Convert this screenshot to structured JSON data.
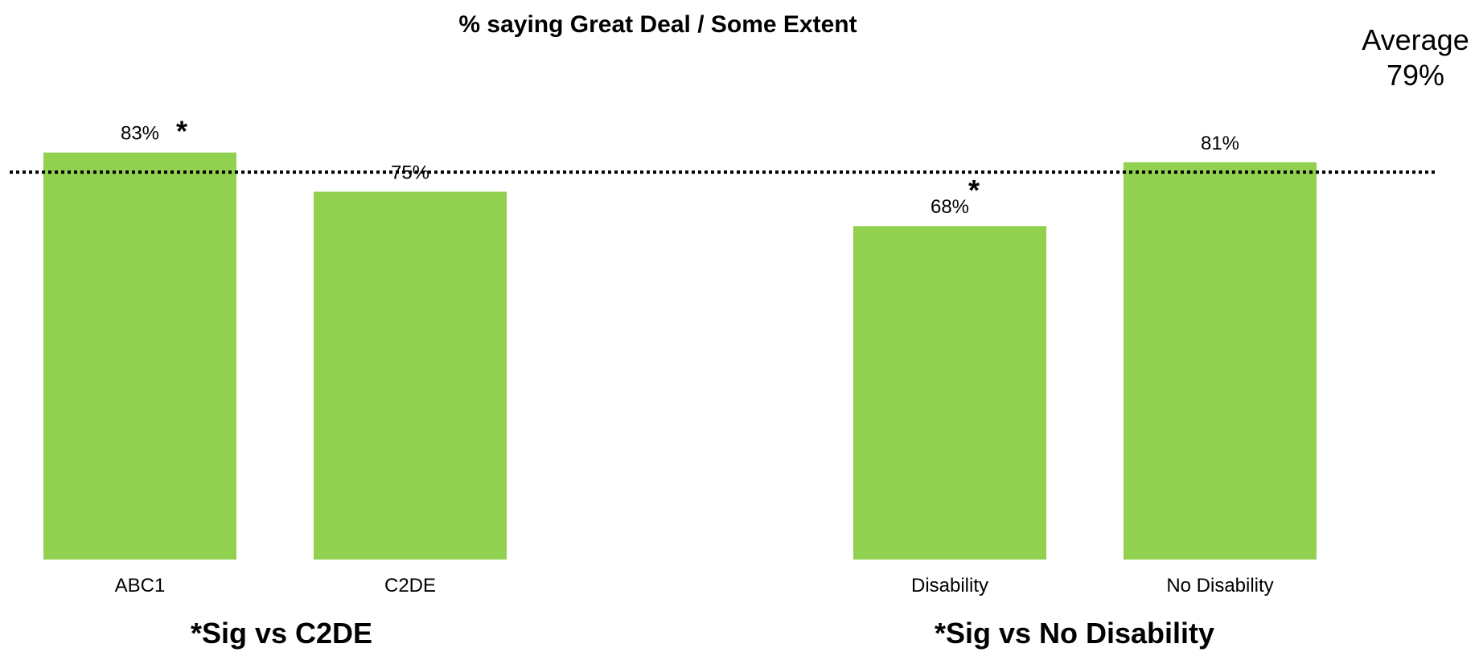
{
  "chart_data": {
    "type": "bar",
    "title": "% saying Great Deal / Some Extent",
    "xlabel": "",
    "ylabel": "",
    "ylim": [
      0,
      100
    ],
    "grid": false,
    "legend": "none",
    "bar_color": "#92d050",
    "categories": [
      "ABC1",
      "C2DE",
      "Disability",
      "No Disability"
    ],
    "values": [
      83,
      75,
      68,
      81
    ],
    "value_labels": [
      "83%",
      "75%",
      "68%",
      "81%"
    ],
    "significant": [
      true,
      false,
      true,
      false
    ],
    "significance_marker": "*",
    "groups": [
      {
        "categories": [
          "ABC1",
          "C2DE"
        ],
        "note": "*Sig vs C2DE"
      },
      {
        "categories": [
          "Disability",
          "No Disability"
        ],
        "note": "*Sig vs No Disability"
      }
    ],
    "reference_line": {
      "value": 79,
      "label": "Average",
      "value_label": "79%",
      "style": "dotted",
      "color": "#000000"
    }
  }
}
